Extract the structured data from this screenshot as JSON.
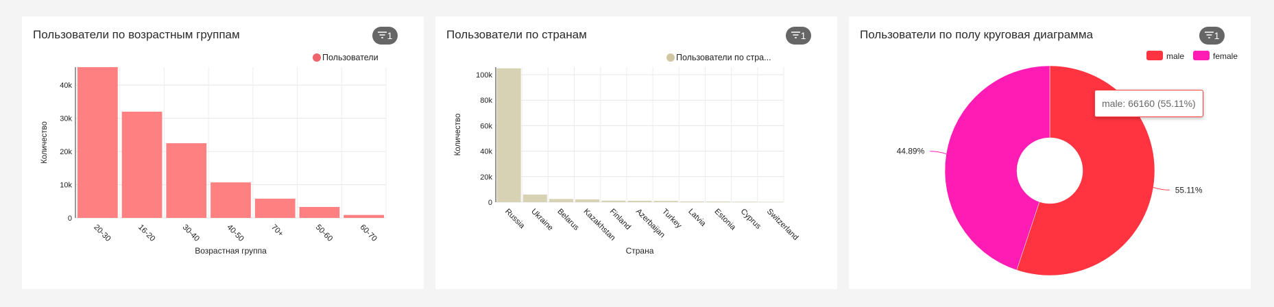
{
  "cards": [
    {
      "title": "Пользователи по возрастным группам",
      "filter_count": "1"
    },
    {
      "title": "Пользователи по странам",
      "filter_count": "1"
    },
    {
      "title": "Пользователи по полу круговая диаграмма",
      "filter_count": "1"
    }
  ],
  "icons": {
    "filter": "filter-icon"
  },
  "chart_data": [
    {
      "type": "bar",
      "categories": [
        "20-30",
        "16-20",
        "30-40",
        "40-50",
        "70+",
        "50-60",
        "60-70"
      ],
      "series": [
        {
          "name": "Пользователи",
          "values": [
            45500,
            32000,
            22500,
            10700,
            5800,
            3300,
            900
          ],
          "color": "#ff8080"
        }
      ],
      "xlabel": "Возрастная группа",
      "ylabel": "Количество",
      "ylim": [
        0,
        45000
      ],
      "yticks": [
        "0",
        "10k",
        "20k",
        "30k",
        "40k"
      ],
      "ytick_values": [
        0,
        10000,
        20000,
        30000,
        40000
      ],
      "legend_label": "Пользователи",
      "legend_color": "#f0636b",
      "grid": true
    },
    {
      "type": "bar",
      "categories": [
        "Russia",
        "Ukraine",
        "Belarus",
        "Kazakhstan",
        "Finland",
        "Azerbaijan",
        "Turkey",
        "Latvia",
        "Estonia",
        "Cyprus",
        "Switzerland"
      ],
      "series": [
        {
          "name": "Пользователи по стра...",
          "values": [
            105000,
            6000,
            2500,
            2200,
            1200,
            1100,
            1000,
            600,
            500,
            400,
            300
          ],
          "color": "#d8d2b4"
        }
      ],
      "xlabel": "Страна",
      "ylabel": "Количество",
      "ylim": [
        0,
        100000
      ],
      "yticks": [
        "0",
        "20k",
        "40k",
        "60k",
        "80k",
        "100k"
      ],
      "ytick_values": [
        0,
        20000,
        40000,
        60000,
        80000,
        100000
      ],
      "legend_label": "Пользователи по стра...",
      "legend_color": "#d0c8a4",
      "grid": true
    },
    {
      "type": "pie",
      "categories": [
        "male",
        "female"
      ],
      "values": [
        55.11,
        44.89
      ],
      "colors": [
        "#ff3440",
        "#ff1cb4"
      ],
      "labels": [
        "55.11%",
        "44.89%"
      ],
      "tooltip": "male: 66160 (55.11%)",
      "legend_position": "top-right"
    }
  ]
}
